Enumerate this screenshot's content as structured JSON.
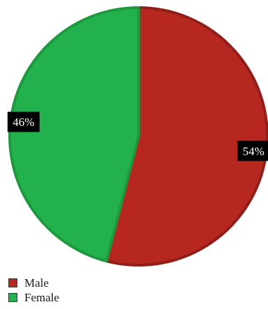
{
  "chart_data": {
    "type": "pie",
    "slices": [
      {
        "label": "Male",
        "value": 54,
        "display": "54%",
        "fill": "#b5271f",
        "stroke": "#8f1f18"
      },
      {
        "label": "Female",
        "value": 46,
        "display": "46%",
        "fill": "#22b14c",
        "stroke": "#1d9a3f"
      }
    ],
    "legend_position": "bottom-left",
    "start_angle_deg": 0,
    "direction": "clockwise"
  },
  "legend": {
    "items": [
      {
        "label": "Male",
        "color": "#b5271f"
      },
      {
        "label": "Female",
        "color": "#22b14c"
      }
    ]
  }
}
